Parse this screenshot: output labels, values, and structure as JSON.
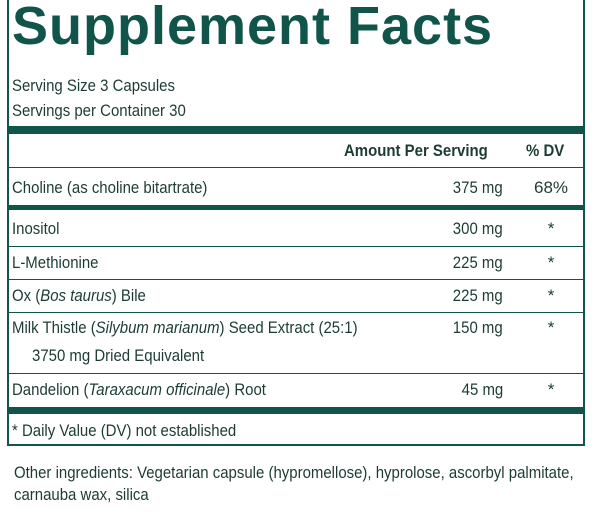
{
  "title": "Supplement Facts",
  "serving_size": "Serving Size 3 Capsules",
  "servings_per_container": "Servings per Container 30",
  "headers": {
    "amount": "Amount Per Serving",
    "dv": "% DV"
  },
  "rows": [
    {
      "pre": "Choline (as choline bitartrate)",
      "italic": "",
      "post": "",
      "line2": "",
      "amount": "375 mg",
      "dv": "68%"
    },
    {
      "pre": "Inositol",
      "italic": "",
      "post": "",
      "line2": "",
      "amount": "300 mg",
      "dv": "*"
    },
    {
      "pre": "L-Methionine",
      "italic": "",
      "post": "",
      "line2": "",
      "amount": "225 mg",
      "dv": "*"
    },
    {
      "pre": "Ox (",
      "italic": "Bos taurus",
      "post": ") Bile",
      "line2": "",
      "amount": "225 mg",
      "dv": "*"
    },
    {
      "pre": "Milk Thistle (",
      "italic": "Silybum marianum",
      "post": ") Seed Extract (25:1)",
      "line2": "3750 mg Dried Equivalent",
      "amount": "150 mg",
      "dv": "*"
    },
    {
      "pre": "Dandelion (",
      "italic": "Taraxacum officinale",
      "post": ") Root",
      "line2": "",
      "amount": "45 mg",
      "dv": "*"
    }
  ],
  "footnote": "* Daily Value (DV) not established",
  "other_ingredients": "Other ingredients: Vegetarian capsule (hypromellose), hyprolose, ascorbyl palmitate, carnauba wax, silica",
  "colors": {
    "accent": "#10544a",
    "text": "#1d3b35"
  }
}
